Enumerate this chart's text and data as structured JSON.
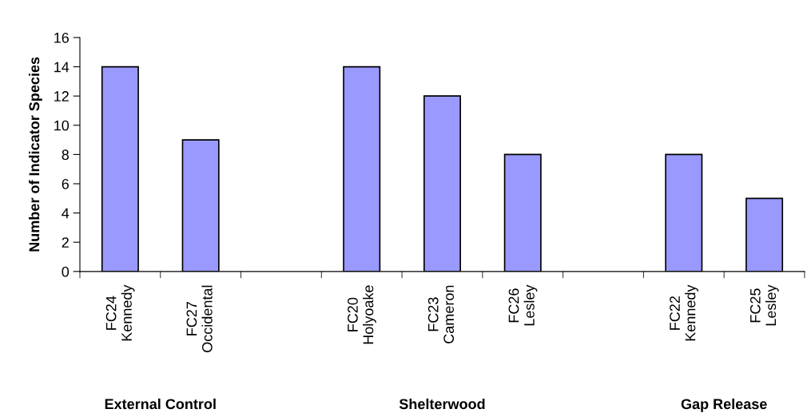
{
  "chart_data": {
    "type": "bar",
    "ylabel": "Number of Indicator Species",
    "categories": [
      "FC24\nKennedy",
      "FC27\nOccidental",
      null,
      "FC20\nHolyoake",
      "FC23\nCameron",
      "FC26\nLesley",
      null,
      "FC22\nKennedy",
      "FC25\nLesley"
    ],
    "values": [
      14,
      9,
      null,
      14,
      12,
      8,
      null,
      8,
      5
    ],
    "color": "#9999ff",
    "ylim": [
      0,
      16
    ],
    "yticks": [
      0,
      2,
      4,
      6,
      8,
      10,
      12,
      14,
      16
    ],
    "annotations": [
      "External Control",
      "Shelterwood",
      "Gap Release"
    ],
    "grid": false,
    "legend": false
  }
}
